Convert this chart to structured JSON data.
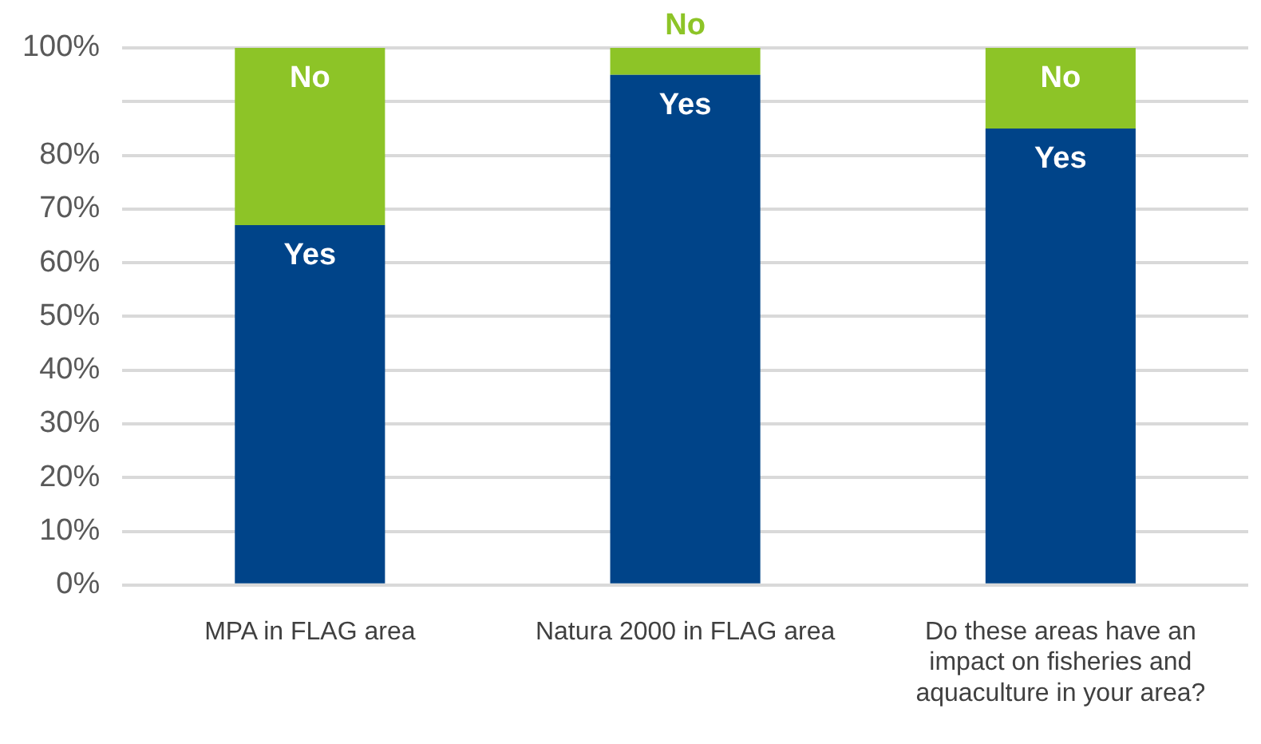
{
  "chart_data": {
    "type": "bar",
    "stacked": true,
    "categories": [
      "MPA in FLAG area",
      "Natura 2000 in FLAG area",
      "Do these areas have an impact on fisheries and aquaculture in your area?"
    ],
    "series": [
      {
        "name": "Yes",
        "color": "#004489",
        "values": [
          67,
          95,
          85
        ]
      },
      {
        "name": "No",
        "color": "#8dc427",
        "values": [
          33,
          5,
          15
        ]
      }
    ],
    "ylim": [
      0,
      100
    ],
    "yticks": [
      {
        "value": 0,
        "label": "0%"
      },
      {
        "value": 10,
        "label": "10%"
      },
      {
        "value": 20,
        "label": "20%"
      },
      {
        "value": 30,
        "label": "30%"
      },
      {
        "value": 40,
        "label": "40%"
      },
      {
        "value": 50,
        "label": "50%"
      },
      {
        "value": 60,
        "label": "60%"
      },
      {
        "value": 70,
        "label": "70%"
      },
      {
        "value": 80,
        "label": "80%"
      },
      {
        "value": 90,
        "label": null
      },
      {
        "value": 100,
        "label": "100%"
      }
    ],
    "grid": "y",
    "legend": false
  }
}
